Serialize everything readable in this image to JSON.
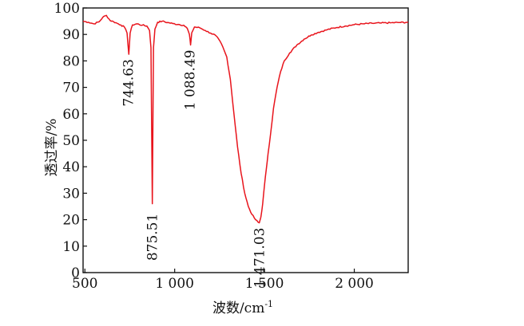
{
  "chart_data": {
    "type": "line",
    "title": "",
    "xlabel": "波数/cm",
    "xlabel_sup": "-1",
    "ylabel": "透过率/%",
    "xlim": [
      490,
      2300
    ],
    "ylim": [
      0,
      100
    ],
    "xticks": [
      {
        "value": 500,
        "label": "500"
      },
      {
        "value": 1000,
        "label": "1 000"
      },
      {
        "value": 1500,
        "label": "1 500"
      },
      {
        "value": 2000,
        "label": "2 000"
      }
    ],
    "yticks": [
      {
        "value": 0,
        "label": "0"
      },
      {
        "value": 10,
        "label": "10"
      },
      {
        "value": 20,
        "label": "20"
      },
      {
        "value": 30,
        "label": "30"
      },
      {
        "value": 40,
        "label": "40"
      },
      {
        "value": 50,
        "label": "50"
      },
      {
        "value": 60,
        "label": "60"
      },
      {
        "value": 70,
        "label": "70"
      },
      {
        "value": 80,
        "label": "80"
      },
      {
        "value": 90,
        "label": "90"
      },
      {
        "value": 100,
        "label": "100"
      }
    ],
    "grid": false,
    "line_color": "#e8141c",
    "series": [
      {
        "x": [
          490,
          520,
          550,
          580,
          600,
          620,
          640,
          660,
          680,
          700,
          720,
          735,
          744.63,
          752,
          765,
          790,
          820,
          845,
          860,
          868,
          875.51,
          882,
          890,
          905,
          930,
          960,
          990,
          1020,
          1050,
          1070,
          1082,
          1088.49,
          1095,
          1110,
          1140,
          1170,
          1200,
          1230,
          1260,
          1290,
          1310,
          1330,
          1350,
          1370,
          1390,
          1410,
          1430,
          1450,
          1465,
          1471.03,
          1480,
          1490,
          1500,
          1510,
          1520,
          1535,
          1550,
          1570,
          1590,
          1610,
          1640,
          1680,
          1720,
          1760,
          1800,
          1850,
          1900,
          1950,
          2000,
          2050,
          2100,
          2150,
          2200,
          2250,
          2300
        ],
        "y": [
          95,
          94.6,
          94,
          94.8,
          96.5,
          97.2,
          95.3,
          94.8,
          94.2,
          93.6,
          92.8,
          90.5,
          82.5,
          90.5,
          93.6,
          94,
          93.5,
          93.2,
          91.5,
          85,
          26,
          85,
          92,
          94.6,
          95,
          94.5,
          94.1,
          93.8,
          93.5,
          92.3,
          90,
          86,
          90.6,
          92.8,
          92.5,
          91.5,
          90.5,
          89.5,
          86.5,
          81.5,
          73,
          60,
          47.5,
          37.5,
          30,
          25,
          22,
          20,
          19,
          18.8,
          21,
          26,
          33,
          39,
          45,
          53,
          62,
          70,
          76,
          80,
          83,
          86,
          88.2,
          89.8,
          90.8,
          91.8,
          92.6,
          93.2,
          93.7,
          94,
          94.2,
          94.3,
          94.4,
          94.5,
          94.6
        ]
      }
    ],
    "annotations": [
      {
        "text": "744.63",
        "x": 744.63,
        "y": 82.5
      },
      {
        "text": "875.51",
        "x": 875.51,
        "y": 26
      },
      {
        "text": "1 088.49",
        "x": 1088.49,
        "y": 86
      },
      {
        "text": "1 471.03",
        "x": 1471.03,
        "y": 18.8
      }
    ]
  }
}
